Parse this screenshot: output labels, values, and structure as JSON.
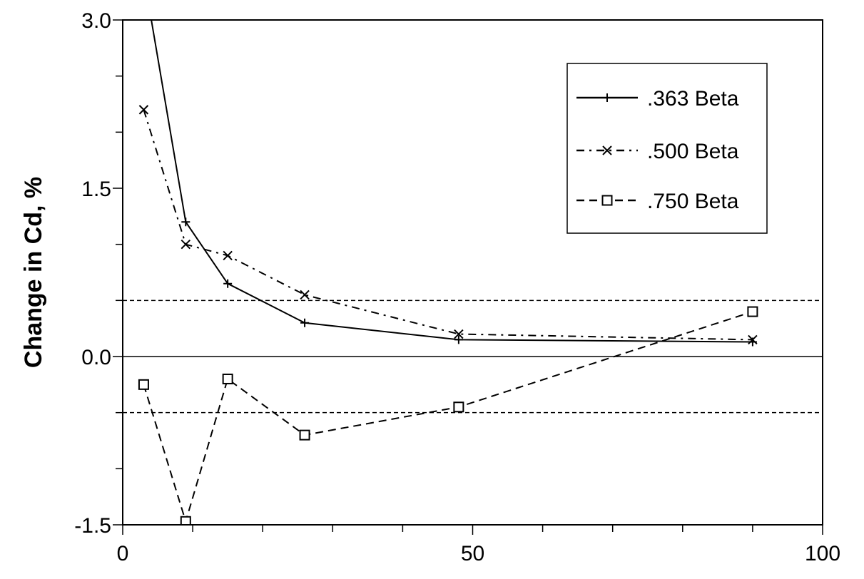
{
  "chart_data": {
    "type": "line",
    "title": "",
    "xlabel": "",
    "ylabel": "Change in Cd, %",
    "xlim": [
      0,
      100
    ],
    "ylim": [
      -1.5,
      3.0
    ],
    "x_ticks": [
      0,
      50,
      100
    ],
    "x_tick_labels": [
      "0",
      "50",
      "100"
    ],
    "x_minor_step": 10,
    "y_ticks": [
      -1.5,
      0.0,
      1.5,
      3.0
    ],
    "y_tick_labels": [
      "-1.5",
      "0.0",
      "1.5",
      "3.0"
    ],
    "y_minor_step": 0.5,
    "grid": false,
    "legend_position": "top-right",
    "reference_lines": [
      {
        "y": 0.0,
        "style": "solid"
      },
      {
        "y": 0.5,
        "style": "dashed"
      },
      {
        "y": -0.5,
        "style": "dashed"
      }
    ],
    "series": [
      {
        "name": ".363 Beta",
        "marker": "plus",
        "line_style": "solid",
        "x": [
          3,
          9,
          15,
          26,
          48,
          90
        ],
        "y": [
          3.4,
          1.2,
          0.65,
          0.3,
          0.15,
          0.13
        ]
      },
      {
        "name": ".500 Beta",
        "marker": "x",
        "line_style": "dash-dot",
        "x": [
          3,
          9,
          15,
          26,
          48,
          90
        ],
        "y": [
          2.2,
          1.0,
          0.9,
          0.55,
          0.2,
          0.15
        ]
      },
      {
        "name": ".750 Beta",
        "marker": "square",
        "line_style": "dashed",
        "x": [
          3,
          9,
          15,
          26,
          48,
          90
        ],
        "y": [
          -0.25,
          -1.47,
          -0.2,
          -0.7,
          -0.45,
          0.4
        ]
      }
    ]
  }
}
